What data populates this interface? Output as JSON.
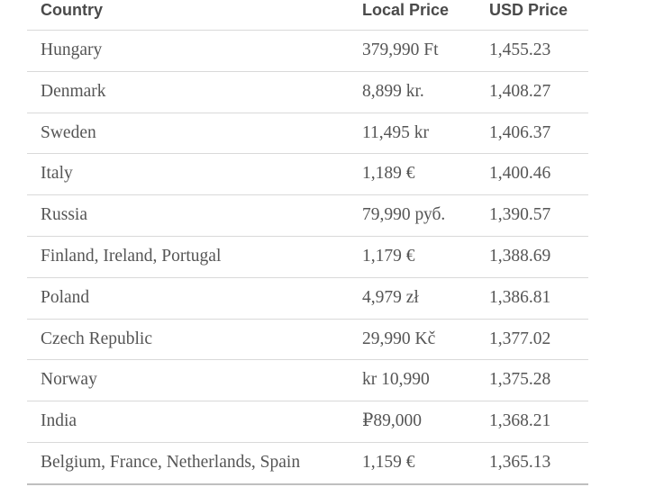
{
  "table": {
    "header": [
      "Country",
      "Local Price",
      "USD Price"
    ],
    "rows": [
      [
        "Hungary",
        "379,990 Ft",
        "1,455.23"
      ],
      [
        "Denmark",
        "8,899 kr.",
        "1,408.27"
      ],
      [
        "Sweden",
        "11,495 kr",
        "1,406.37"
      ],
      [
        "Italy",
        "1,189 €",
        "1,400.46"
      ],
      [
        "Russia",
        "79,990 руб.",
        "1,390.57"
      ],
      [
        "Finland, Ireland, Portugal",
        "1,179 €",
        "1,388.69"
      ],
      [
        "Poland",
        "4,979 zł",
        "1,386.81"
      ],
      [
        "Czech Republic",
        "29,990 Kč",
        "1,377.02"
      ],
      [
        "Norway",
        "kr 10,990",
        "1,375.28"
      ],
      [
        "India",
        "₽89,000",
        "1,368.21"
      ],
      [
        "Belgium, France, Netherlands, Spain",
        "1,159 €",
        "1,365.13"
      ]
    ]
  }
}
